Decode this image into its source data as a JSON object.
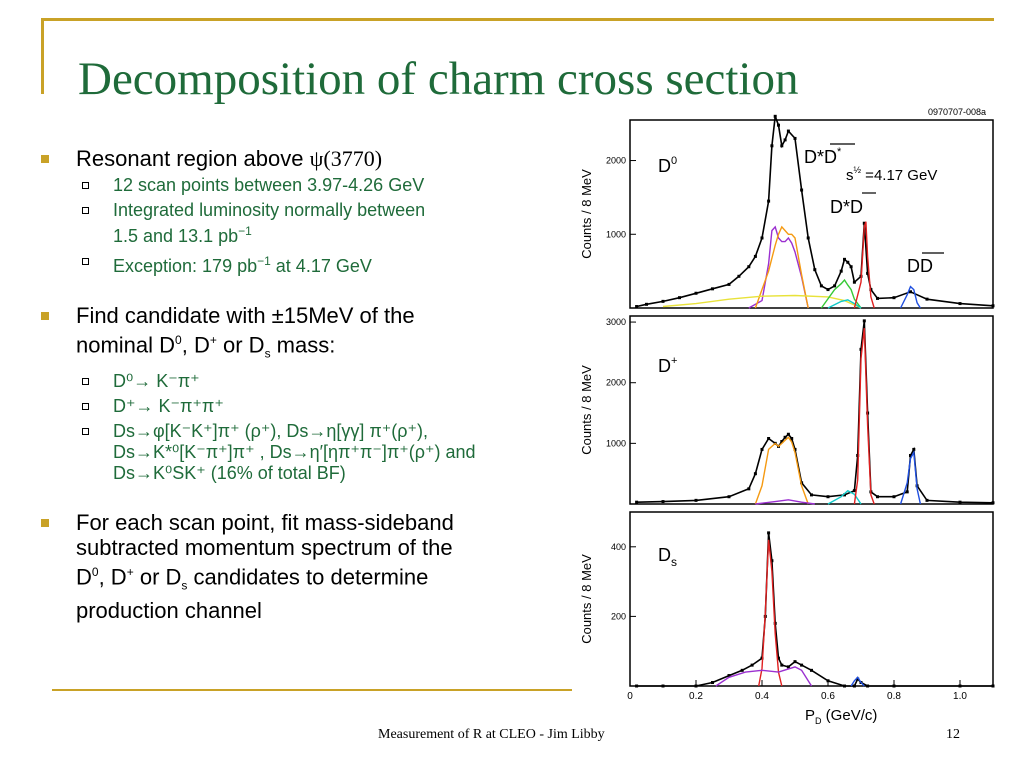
{
  "slide": {
    "title": "Decomposition of charm cross section",
    "footer": "Measurement of R at CLEO - Jim Libby",
    "page_number": "12"
  },
  "bullets": {
    "b1": {
      "text": "Resonant region above ",
      "psi": "ψ(3770)"
    },
    "b1_sub": [
      "12 scan points between 3.97-4.26 GeV",
      "Integrated luminosity normally between",
      "1.5 and 13.1 pb",
      "−1",
      "Exception: 179 pb",
      "−1",
      " at 4.17 GeV"
    ],
    "b2": {
      "line1": "Find candidate with ±15MeV of the",
      "line2a": "nominal D",
      "sup0": "0",
      "line2b": ", D",
      "supplus": "+",
      "line2c": " or D",
      "subs": "s",
      "line2d": " mass:"
    },
    "b2_sub": {
      "d0": "D⁰→ K⁻π⁺",
      "dplus": "D⁺→ K⁻π⁺π⁺",
      "ds_line1": "Ds→φ[K⁻K⁺]π⁺ (ρ⁺), Ds→η[γγ] π⁺(ρ⁺),",
      "ds_line2": "Ds→K*⁰[K⁻π⁺]π⁺ , Ds→η′[ηπ⁺π⁻]π⁺(ρ⁺) and",
      "ds_line3": "Ds→K⁰SK⁺ (16% of total BF)"
    },
    "b3": {
      "line1": "For each scan point, fit mass-sideband",
      "line2": "subtracted momentum spectrum of the",
      "line3a": "D",
      "sup0": "0",
      "line3b": ", D",
      "supplus": "+",
      "line3c": " or D",
      "subs": "s",
      "line3d": " candidates to determine",
      "line4": "production channel"
    }
  },
  "chart_data": [
    {
      "type": "line",
      "panel": "D0",
      "figure_id": "0970707-008a",
      "ylabel": "Counts / 8 MeV",
      "yticks": [
        1000,
        2000
      ],
      "ylim": [
        0,
        2550
      ],
      "xlim": [
        0,
        1.1
      ],
      "labels": [
        "D⁰",
        "D*D*",
        "s½ =4.17 GeV",
        "D*D",
        "DD"
      ],
      "series": [
        {
          "color": "#000000",
          "x": [
            0.02,
            0.05,
            0.1,
            0.15,
            0.2,
            0.25,
            0.3,
            0.33,
            0.36,
            0.38,
            0.4,
            0.42,
            0.43,
            0.44,
            0.45,
            0.46,
            0.47,
            0.48,
            0.5,
            0.52,
            0.54,
            0.56,
            0.58,
            0.6,
            0.62,
            0.64,
            0.65,
            0.66,
            0.67,
            0.68,
            0.7,
            0.71,
            0.72,
            0.73,
            0.75,
            0.8,
            0.85,
            0.9,
            1.0,
            1.1
          ],
          "y": [
            20,
            50,
            90,
            140,
            200,
            260,
            320,
            430,
            560,
            700,
            950,
            1450,
            2200,
            2600,
            2480,
            2200,
            2280,
            2400,
            2300,
            1600,
            950,
            520,
            300,
            250,
            300,
            500,
            660,
            620,
            560,
            350,
            430,
            1150,
            470,
            250,
            130,
            140,
            220,
            120,
            60,
            30
          ]
        },
        {
          "color": "#9b30d0",
          "x": [
            0.36,
            0.4,
            0.42,
            0.43,
            0.44,
            0.45,
            0.46,
            0.47,
            0.48,
            0.49,
            0.5,
            0.52,
            0.54
          ],
          "y": [
            0,
            100,
            600,
            1050,
            1100,
            950,
            900,
            900,
            950,
            880,
            760,
            420,
            0
          ]
        },
        {
          "color": "#f59a12",
          "x": [
            0.38,
            0.42,
            0.44,
            0.45,
            0.46,
            0.47,
            0.48,
            0.49,
            0.5,
            0.52,
            0.54
          ],
          "y": [
            0,
            500,
            850,
            1000,
            1100,
            1050,
            1000,
            1000,
            950,
            450,
            0
          ]
        },
        {
          "color": "#e8e23a",
          "x": [
            0.1,
            0.2,
            0.3,
            0.4,
            0.5,
            0.6,
            0.65,
            0.7
          ],
          "y": [
            20,
            60,
            120,
            160,
            170,
            150,
            100,
            0
          ]
        },
        {
          "color": "#36c936",
          "x": [
            0.58,
            0.62,
            0.64,
            0.65,
            0.66,
            0.67,
            0.68,
            0.7
          ],
          "y": [
            0,
            250,
            330,
            380,
            310,
            250,
            120,
            0
          ]
        },
        {
          "color": "#10c9c9",
          "x": [
            0.6,
            0.64,
            0.66,
            0.68,
            0.7
          ],
          "y": [
            0,
            90,
            110,
            60,
            0
          ]
        },
        {
          "color": "#e02020",
          "x": [
            0.68,
            0.7,
            0.71,
            0.715,
            0.72,
            0.73,
            0.74
          ],
          "y": [
            0,
            350,
            1100,
            1170,
            700,
            150,
            0
          ]
        },
        {
          "color": "#2050e0",
          "x": [
            0.82,
            0.84,
            0.85,
            0.86,
            0.87,
            0.88
          ],
          "y": [
            0,
            180,
            290,
            250,
            70,
            0
          ]
        }
      ]
    },
    {
      "type": "line",
      "panel": "D+",
      "ylabel": "Counts / 8 MeV",
      "yticks": [
        1000,
        2000,
        3000
      ],
      "ylim": [
        0,
        3100
      ],
      "xlim": [
        0,
        1.1
      ],
      "labels": [
        "D⁺"
      ],
      "series": [
        {
          "color": "#000000",
          "x": [
            0.02,
            0.1,
            0.2,
            0.3,
            0.36,
            0.38,
            0.4,
            0.42,
            0.44,
            0.45,
            0.46,
            0.47,
            0.48,
            0.49,
            0.5,
            0.52,
            0.55,
            0.6,
            0.65,
            0.68,
            0.69,
            0.7,
            0.71,
            0.72,
            0.73,
            0.75,
            0.8,
            0.84,
            0.85,
            0.86,
            0.87,
            0.9,
            1.0,
            1.1
          ],
          "y": [
            30,
            40,
            60,
            120,
            250,
            500,
            900,
            1080,
            1000,
            950,
            1030,
            1100,
            1150,
            1080,
            900,
            350,
            150,
            120,
            150,
            220,
            800,
            2550,
            3020,
            1500,
            200,
            120,
            120,
            200,
            800,
            900,
            300,
            60,
            30,
            20
          ]
        },
        {
          "color": "#f59a12",
          "x": [
            0.38,
            0.4,
            0.42,
            0.44,
            0.45,
            0.46,
            0.47,
            0.48,
            0.49,
            0.5,
            0.52,
            0.54
          ],
          "y": [
            0,
            300,
            900,
            1000,
            950,
            1000,
            1050,
            1100,
            1020,
            850,
            300,
            0
          ]
        },
        {
          "color": "#9b30d0",
          "x": [
            0.38,
            0.44,
            0.48,
            0.52,
            0.56
          ],
          "y": [
            0,
            40,
            70,
            30,
            0
          ]
        },
        {
          "color": "#10c9c9",
          "x": [
            0.6,
            0.64,
            0.66,
            0.68,
            0.7
          ],
          "y": [
            0,
            120,
            220,
            160,
            0
          ]
        },
        {
          "color": "#e02020",
          "x": [
            0.68,
            0.69,
            0.7,
            0.71,
            0.72,
            0.73,
            0.74
          ],
          "y": [
            0,
            400,
            2400,
            2900,
            1300,
            150,
            0
          ]
        },
        {
          "color": "#2050e0",
          "x": [
            0.82,
            0.84,
            0.85,
            0.86,
            0.87,
            0.88
          ],
          "y": [
            0,
            350,
            750,
            850,
            250,
            0
          ]
        }
      ]
    },
    {
      "type": "line",
      "panel": "Ds",
      "ylabel": "Counts / 8 MeV",
      "yticks": [
        200,
        400
      ],
      "ylim": [
        0,
        500
      ],
      "xlim": [
        0,
        1.1
      ],
      "xlabel": "P_D (GeV/c)",
      "xticks": [
        "0",
        "0.2",
        "0.4",
        "0.6",
        "0.8",
        "1.0"
      ],
      "xtick_values": [
        0,
        0.2,
        0.4,
        0.6,
        0.8,
        1.0
      ],
      "labels": [
        "Ds"
      ],
      "series": [
        {
          "color": "#000000",
          "x": [
            0.02,
            0.1,
            0.2,
            0.25,
            0.3,
            0.34,
            0.37,
            0.4,
            0.41,
            0.42,
            0.43,
            0.44,
            0.45,
            0.46,
            0.48,
            0.5,
            0.52,
            0.55,
            0.6,
            0.65,
            0.68,
            0.69,
            0.7,
            0.72,
            0.8,
            1.0,
            1.1
          ],
          "y": [
            0,
            0,
            0,
            10,
            30,
            45,
            60,
            80,
            200,
            440,
            360,
            180,
            80,
            60,
            55,
            70,
            60,
            45,
            15,
            0,
            0,
            20,
            10,
            0,
            0,
            0,
            0
          ]
        },
        {
          "color": "#e02020",
          "x": [
            0.39,
            0.4,
            0.41,
            0.42,
            0.43,
            0.44,
            0.45,
            0.46
          ],
          "y": [
            0,
            50,
            210,
            420,
            330,
            150,
            40,
            0
          ]
        },
        {
          "color": "#9b30d0",
          "x": [
            0.26,
            0.3,
            0.35,
            0.4,
            0.45,
            0.5,
            0.52,
            0.55
          ],
          "y": [
            0,
            25,
            40,
            45,
            40,
            55,
            45,
            0
          ]
        },
        {
          "color": "#2050e0",
          "x": [
            0.67,
            0.68,
            0.69,
            0.7,
            0.71
          ],
          "y": [
            0,
            15,
            25,
            10,
            0
          ]
        }
      ]
    }
  ]
}
